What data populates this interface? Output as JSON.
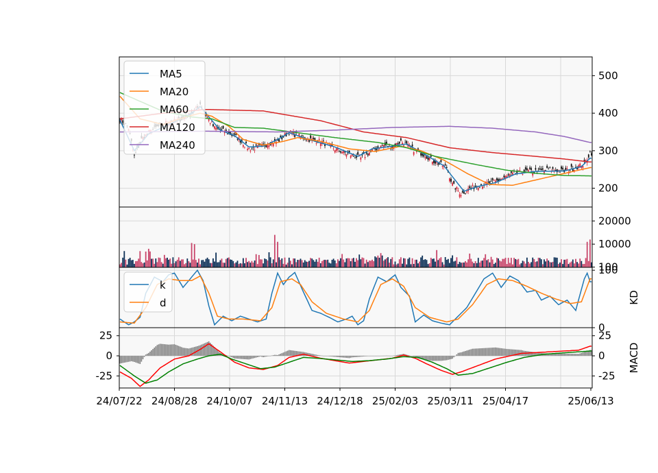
{
  "chart_data": {
    "type": "candlestick",
    "x_tick_labels": [
      "24/07/22",
      "24/08/28",
      "24/10/07",
      "24/11/13",
      "24/12/18",
      "25/02/03",
      "25/03/11",
      "25/04/17",
      "25/06/13"
    ],
    "price_panel": {
      "yticks": [
        200,
        300,
        400,
        500
      ],
      "ylim": [
        150,
        550
      ],
      "legend": [
        "MA5",
        "MA20",
        "MA60",
        "MA120",
        "MA240"
      ],
      "legend_position": "upper-left",
      "ma_colors": [
        "#1f77b4",
        "#ff7f0e",
        "#2ca02c",
        "#d62728",
        "#9467bd"
      ],
      "close_anchors": [
        [
          0,
          385
        ],
        [
          6,
          360
        ],
        [
          10,
          285
        ],
        [
          15,
          330
        ],
        [
          22,
          355
        ],
        [
          32,
          375
        ],
        [
          40,
          380
        ],
        [
          48,
          395
        ],
        [
          52,
          405
        ],
        [
          56,
          425
        ],
        [
          60,
          395
        ],
        [
          66,
          360
        ],
        [
          74,
          350
        ],
        [
          82,
          335
        ],
        [
          90,
          305
        ],
        [
          98,
          310
        ],
        [
          104,
          320
        ],
        [
          110,
          325
        ],
        [
          118,
          350
        ],
        [
          124,
          340
        ],
        [
          132,
          330
        ],
        [
          140,
          325
        ],
        [
          150,
          305
        ],
        [
          160,
          290
        ],
        [
          168,
          280
        ],
        [
          176,
          300
        ],
        [
          184,
          315
        ],
        [
          190,
          310
        ],
        [
          196,
          325
        ],
        [
          204,
          305
        ],
        [
          212,
          290
        ],
        [
          220,
          270
        ],
        [
          228,
          255
        ],
        [
          232,
          210
        ],
        [
          238,
          185
        ],
        [
          244,
          200
        ],
        [
          252,
          210
        ],
        [
          260,
          215
        ],
        [
          268,
          228
        ],
        [
          276,
          240
        ],
        [
          284,
          245
        ],
        [
          292,
          245
        ],
        [
          300,
          250
        ],
        [
          310,
          245
        ],
        [
          318,
          255
        ],
        [
          324,
          265
        ],
        [
          328,
          295
        ]
      ],
      "ma_anchors": {
        "MA5": [
          [
            0,
            382
          ],
          [
            10,
            300
          ],
          [
            20,
            345
          ],
          [
            40,
            380
          ],
          [
            50,
            400
          ],
          [
            56,
            418
          ],
          [
            62,
            390
          ],
          [
            70,
            355
          ],
          [
            80,
            340
          ],
          [
            90,
            310
          ],
          [
            100,
            312
          ],
          [
            110,
            330
          ],
          [
            118,
            348
          ],
          [
            130,
            332
          ],
          [
            150,
            310
          ],
          [
            166,
            285
          ],
          [
            176,
            305
          ],
          [
            190,
            312
          ],
          [
            200,
            318
          ],
          [
            212,
            292
          ],
          [
            226,
            260
          ],
          [
            240,
            192
          ],
          [
            250,
            205
          ],
          [
            262,
            215
          ],
          [
            276,
            238
          ],
          [
            290,
            245
          ],
          [
            310,
            246
          ],
          [
            322,
            258
          ],
          [
            328,
            280
          ]
        ],
        "MA20": [
          [
            0,
            445
          ],
          [
            14,
            385
          ],
          [
            30,
            370
          ],
          [
            46,
            390
          ],
          [
            56,
            400
          ],
          [
            64,
            392
          ],
          [
            76,
            365
          ],
          [
            86,
            330
          ],
          [
            100,
            315
          ],
          [
            114,
            325
          ],
          [
            124,
            335
          ],
          [
            140,
            325
          ],
          [
            160,
            305
          ],
          [
            178,
            298
          ],
          [
            196,
            312
          ],
          [
            210,
            300
          ],
          [
            226,
            275
          ],
          [
            242,
            240
          ],
          [
            258,
            210
          ],
          [
            274,
            208
          ],
          [
            290,
            222
          ],
          [
            306,
            236
          ],
          [
            328,
            255
          ]
        ],
        "MA60": [
          [
            0,
            455
          ],
          [
            30,
            405
          ],
          [
            50,
            390
          ],
          [
            64,
            385
          ],
          [
            80,
            362
          ],
          [
            100,
            360
          ],
          [
            120,
            350
          ],
          [
            150,
            335
          ],
          [
            180,
            322
          ],
          [
            200,
            308
          ],
          [
            220,
            285
          ],
          [
            250,
            262
          ],
          [
            270,
            248
          ],
          [
            290,
            240
          ],
          [
            310,
            234
          ],
          [
            328,
            233
          ]
        ],
        "MA120": [
          [
            0,
            385
          ],
          [
            30,
            400
          ],
          [
            60,
            410
          ],
          [
            100,
            406
          ],
          [
            140,
            380
          ],
          [
            170,
            350
          ],
          [
            200,
            335
          ],
          [
            230,
            308
          ],
          [
            260,
            295
          ],
          [
            290,
            285
          ],
          [
            310,
            278
          ],
          [
            328,
            270
          ]
        ],
        "MA240": [
          [
            0,
            350
          ],
          [
            60,
            352
          ],
          [
            110,
            350
          ],
          [
            150,
            355
          ],
          [
            190,
            362
          ],
          [
            230,
            365
          ],
          [
            260,
            360
          ],
          [
            290,
            350
          ],
          [
            310,
            338
          ],
          [
            328,
            322
          ]
        ]
      }
    },
    "volume_panel": {
      "yticks": [
        100,
        10000,
        20000
      ],
      "ylim": [
        0,
        26000
      ],
      "spikes": [
        [
          108,
          14000
        ],
        [
          110,
          11000
        ],
        [
          50,
          10500
        ],
        [
          52,
          10000
        ],
        [
          326,
          11000
        ],
        [
          328,
          12000
        ],
        [
          20,
          8000
        ],
        [
          14,
          7000
        ]
      ]
    },
    "kd_panel": {
      "ylabel": "KD",
      "yticks": [
        0,
        100
      ],
      "ylim": [
        0,
        105
      ],
      "legend": [
        "k",
        "d"
      ],
      "colors": [
        "#1f77b4",
        "#ff7f0e"
      ],
      "k_anchors": [
        [
          0,
          15
        ],
        [
          6,
          5
        ],
        [
          10,
          10
        ],
        [
          14,
          18
        ],
        [
          18,
          60
        ],
        [
          24,
          88
        ],
        [
          30,
          80
        ],
        [
          34,
          92
        ],
        [
          38,
          95
        ],
        [
          44,
          70
        ],
        [
          50,
          88
        ],
        [
          54,
          100
        ],
        [
          58,
          82
        ],
        [
          62,
          38
        ],
        [
          66,
          5
        ],
        [
          72,
          20
        ],
        [
          78,
          12
        ],
        [
          84,
          20
        ],
        [
          90,
          15
        ],
        [
          96,
          10
        ],
        [
          102,
          15
        ],
        [
          106,
          60
        ],
        [
          110,
          95
        ],
        [
          114,
          75
        ],
        [
          118,
          88
        ],
        [
          122,
          96
        ],
        [
          128,
          62
        ],
        [
          134,
          30
        ],
        [
          140,
          25
        ],
        [
          146,
          18
        ],
        [
          152,
          10
        ],
        [
          158,
          15
        ],
        [
          162,
          20
        ],
        [
          166,
          5
        ],
        [
          170,
          12
        ],
        [
          174,
          50
        ],
        [
          180,
          88
        ],
        [
          186,
          80
        ],
        [
          192,
          92
        ],
        [
          196,
          70
        ],
        [
          202,
          55
        ],
        [
          206,
          10
        ],
        [
          212,
          22
        ],
        [
          218,
          12
        ],
        [
          224,
          8
        ],
        [
          230,
          5
        ],
        [
          234,
          15
        ],
        [
          238,
          25
        ],
        [
          242,
          35
        ],
        [
          248,
          60
        ],
        [
          254,
          85
        ],
        [
          260,
          95
        ],
        [
          266,
          70
        ],
        [
          272,
          90
        ],
        [
          278,
          82
        ],
        [
          284,
          62
        ],
        [
          290,
          65
        ],
        [
          294,
          48
        ],
        [
          300,
          55
        ],
        [
          306,
          40
        ],
        [
          312,
          48
        ],
        [
          318,
          30
        ],
        [
          324,
          85
        ],
        [
          326,
          95
        ],
        [
          328,
          80
        ]
      ],
      "d_anchors": [
        [
          0,
          10
        ],
        [
          10,
          8
        ],
        [
          18,
          35
        ],
        [
          26,
          75
        ],
        [
          34,
          85
        ],
        [
          42,
          82
        ],
        [
          50,
          82
        ],
        [
          56,
          90
        ],
        [
          62,
          60
        ],
        [
          68,
          20
        ],
        [
          76,
          15
        ],
        [
          86,
          15
        ],
        [
          98,
          12
        ],
        [
          106,
          35
        ],
        [
          112,
          80
        ],
        [
          120,
          85
        ],
        [
          126,
          75
        ],
        [
          134,
          45
        ],
        [
          144,
          25
        ],
        [
          156,
          15
        ],
        [
          166,
          10
        ],
        [
          174,
          30
        ],
        [
          182,
          75
        ],
        [
          190,
          85
        ],
        [
          198,
          72
        ],
        [
          206,
          35
        ],
        [
          216,
          18
        ],
        [
          228,
          10
        ],
        [
          236,
          15
        ],
        [
          246,
          40
        ],
        [
          256,
          75
        ],
        [
          264,
          85
        ],
        [
          274,
          82
        ],
        [
          284,
          72
        ],
        [
          294,
          60
        ],
        [
          304,
          50
        ],
        [
          314,
          42
        ],
        [
          322,
          45
        ],
        [
          328,
          85
        ]
      ]
    },
    "macd_panel": {
      "ylabel": "MACD",
      "yticks": [
        -25,
        0,
        25
      ],
      "ylim": [
        -40,
        35
      ],
      "dif_color": "#ff0000",
      "dea_color": "#008000",
      "hist_color": "#808080",
      "dif_anchors": [
        [
          0,
          -20
        ],
        [
          8,
          -28
        ],
        [
          14,
          -38
        ],
        [
          20,
          -30
        ],
        [
          28,
          -15
        ],
        [
          38,
          -4
        ],
        [
          48,
          0
        ],
        [
          56,
          8
        ],
        [
          62,
          15
        ],
        [
          70,
          5
        ],
        [
          80,
          -8
        ],
        [
          90,
          -15
        ],
        [
          100,
          -17
        ],
        [
          110,
          -12
        ],
        [
          118,
          -2
        ],
        [
          128,
          2
        ],
        [
          140,
          -3
        ],
        [
          150,
          -6
        ],
        [
          160,
          -9
        ],
        [
          170,
          -7
        ],
        [
          180,
          -5
        ],
        [
          190,
          -3
        ],
        [
          198,
          1
        ],
        [
          206,
          -3
        ],
        [
          214,
          -10
        ],
        [
          224,
          -18
        ],
        [
          232,
          -23
        ],
        [
          238,
          -20
        ],
        [
          250,
          -12
        ],
        [
          262,
          -4
        ],
        [
          280,
          3
        ],
        [
          300,
          5
        ],
        [
          320,
          7
        ],
        [
          328,
          12
        ]
      ],
      "dea_anchors": [
        [
          0,
          -12
        ],
        [
          10,
          -25
        ],
        [
          18,
          -34
        ],
        [
          26,
          -30
        ],
        [
          34,
          -20
        ],
        [
          44,
          -10
        ],
        [
          54,
          -4
        ],
        [
          62,
          0
        ],
        [
          70,
          2
        ],
        [
          78,
          -4
        ],
        [
          88,
          -10
        ],
        [
          98,
          -16
        ],
        [
          108,
          -14
        ],
        [
          118,
          -8
        ],
        [
          128,
          -2
        ],
        [
          138,
          -3
        ],
        [
          150,
          -5
        ],
        [
          162,
          -7
        ],
        [
          174,
          -6
        ],
        [
          186,
          -4
        ],
        [
          198,
          -1
        ],
        [
          208,
          -2
        ],
        [
          218,
          -8
        ],
        [
          228,
          -16
        ],
        [
          236,
          -24
        ],
        [
          246,
          -22
        ],
        [
          258,
          -15
        ],
        [
          270,
          -8
        ],
        [
          282,
          -2
        ],
        [
          296,
          2
        ],
        [
          312,
          4
        ],
        [
          328,
          6
        ]
      ]
    }
  }
}
